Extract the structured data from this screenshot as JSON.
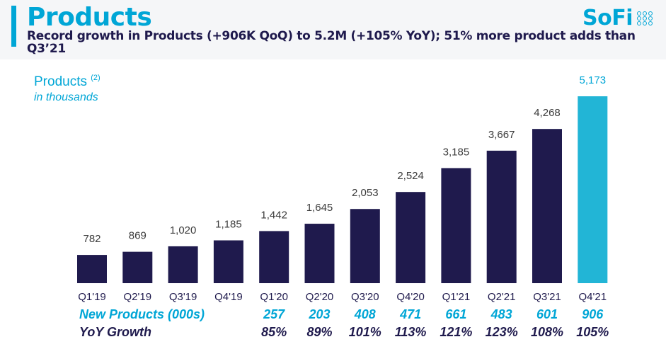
{
  "header": {
    "title": "Products",
    "subtitle": "Record growth in Products (+906K QoQ) to 5.2M (+105% YoY); 51% more product adds than Q3’21",
    "logo_text": "SoFi"
  },
  "colors": {
    "accent": "#00a6d6",
    "navy": "#1f1a4d",
    "highlight_bar": "#22b5d6",
    "axis_text": "#1f1a4d"
  },
  "chart_data": {
    "type": "bar",
    "title": "Products",
    "title_note": "(2)",
    "subtitle": "in thousands",
    "categories": [
      "Q1'19",
      "Q2'19",
      "Q3'19",
      "Q4'19",
      "Q1'20",
      "Q2'20",
      "Q3'20",
      "Q4'20",
      "Q1'21",
      "Q2'21",
      "Q3'21",
      "Q4'21"
    ],
    "values": [
      782,
      869,
      1020,
      1185,
      1442,
      1645,
      2053,
      2524,
      3185,
      3667,
      4268,
      5173
    ],
    "value_labels": [
      "782",
      "869",
      "1,020",
      "1,185",
      "1,442",
      "1,645",
      "2,053",
      "2,524",
      "3,185",
      "3,667",
      "4,268",
      "5,173"
    ],
    "highlight_index": 11,
    "grid": false,
    "legend": "none"
  },
  "table": {
    "new_products": {
      "label": "New Products (000s)",
      "values": [
        "257",
        "203",
        "408",
        "471",
        "661",
        "483",
        "601",
        "906"
      ]
    },
    "yoy_growth": {
      "label": "YoY Growth",
      "values": [
        "85%",
        "89%",
        "101%",
        "113%",
        "121%",
        "123%",
        "108%",
        "105%"
      ]
    },
    "start_index": 4
  }
}
